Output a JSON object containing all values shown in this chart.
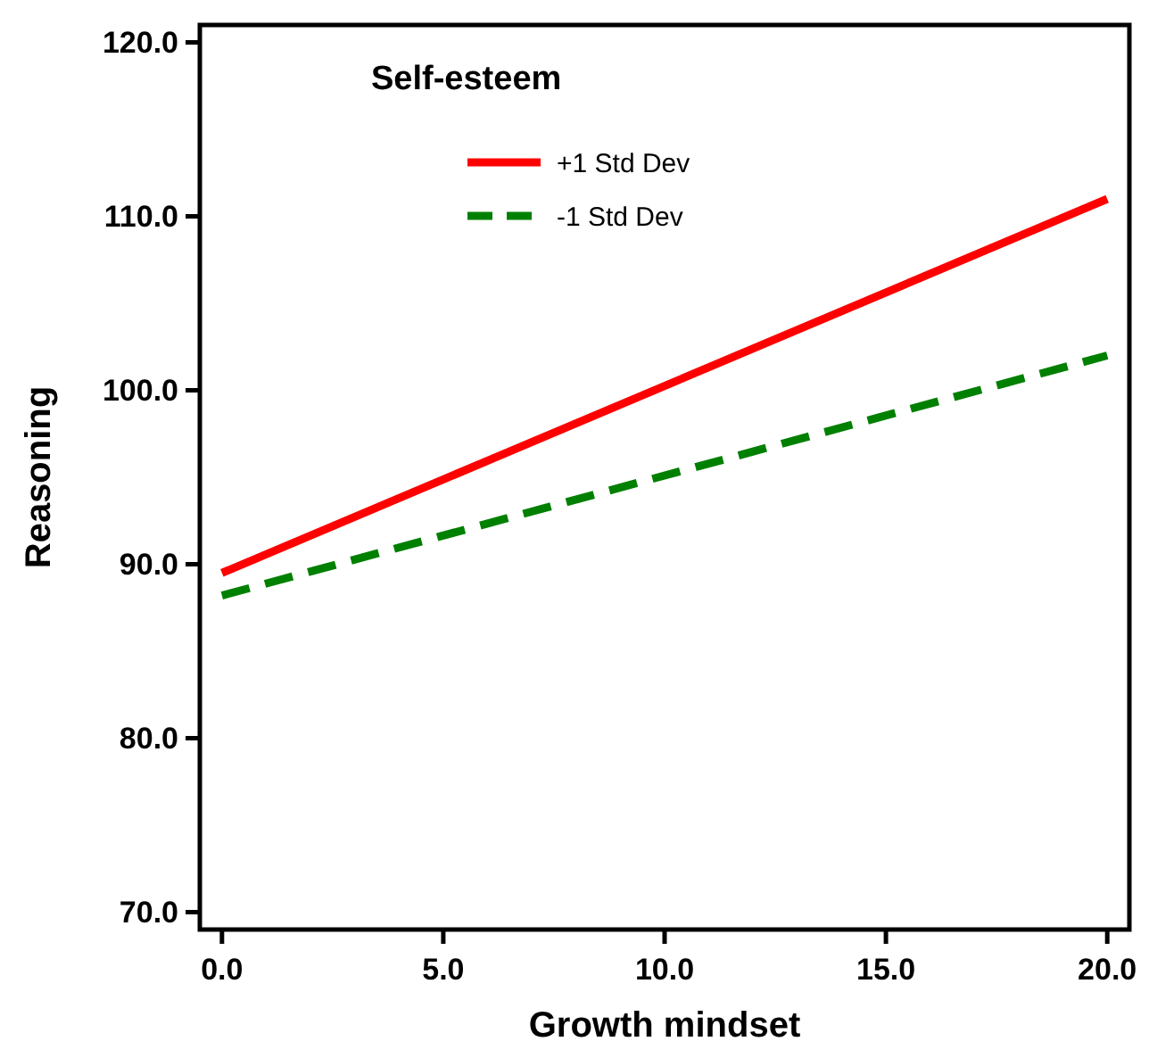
{
  "chart_data": {
    "type": "line",
    "xlabel": "Growth mindset",
    "ylabel": "Reasoning",
    "legend_title": "Self-esteem",
    "legend": "top left",
    "grid": false,
    "x": [
      0,
      20
    ],
    "series": [
      {
        "name": "+1 Std Dev",
        "color": "#ff0000",
        "values": [
          89.5,
          111.0
        ],
        "line_style": "solid"
      },
      {
        "name": "-1 Std Dev",
        "color": "#008000",
        "values": [
          88.2,
          102.0
        ],
        "line_style": "dashed"
      }
    ],
    "xlim": [
      -0.5,
      20.5
    ],
    "ylim": [
      69,
      121
    ],
    "xticks": [
      {
        "value": 0,
        "label": "0.0"
      },
      {
        "value": 5,
        "label": "5.0"
      },
      {
        "value": 10,
        "label": "10.0"
      },
      {
        "value": 15,
        "label": "15.0"
      },
      {
        "value": 20,
        "label": "20.0"
      }
    ],
    "yticks": [
      {
        "value": 70,
        "label": "70.0"
      },
      {
        "value": 80,
        "label": "80.0"
      },
      {
        "value": 90,
        "label": "90.0"
      },
      {
        "value": 100,
        "label": "100.0"
      },
      {
        "value": 110,
        "label": "110.0"
      },
      {
        "value": 120,
        "label": "120.0"
      }
    ]
  }
}
